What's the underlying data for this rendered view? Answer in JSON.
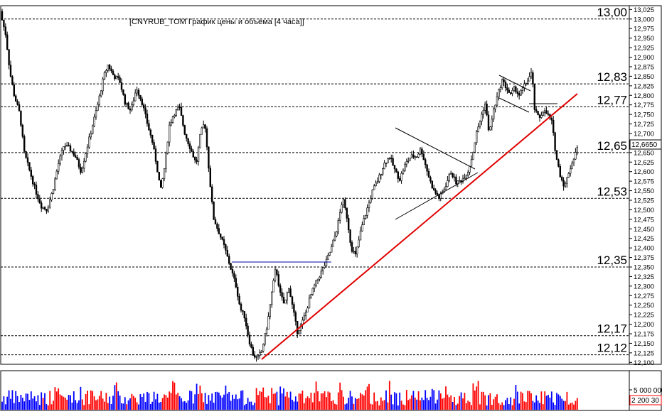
{
  "chart_data": {
    "type": "candlestick",
    "title": "[CNYRUB_TOM График цены и объёма [4 часа]]",
    "ylim": [
      12.095,
      13.035
    ],
    "y_ticks": [
      "13,025",
      "13,000",
      "12,975",
      "12,950",
      "12,925",
      "12,900",
      "12,875",
      "12,850",
      "12,825",
      "12,800",
      "12,775",
      "12,750",
      "12,725",
      "12,700",
      "12,675",
      "12,650",
      "12,625",
      "12,600",
      "12,575",
      "12,550",
      "12,525",
      "12,500",
      "12,475",
      "12,450",
      "12,425",
      "12,400",
      "12,375",
      "12,350",
      "12,325",
      "12,300",
      "12,275",
      "12,250",
      "12,225",
      "12,200",
      "12,175",
      "12,150",
      "12,125",
      "12,100"
    ],
    "levels": [
      {
        "value": 13.0,
        "label": "13,00"
      },
      {
        "value": 12.83,
        "label": "12,83"
      },
      {
        "value": 12.77,
        "label": "12,77"
      },
      {
        "value": 12.65,
        "label": "12,65"
      },
      {
        "value": 12.53,
        "label": "12,53"
      },
      {
        "value": 12.35,
        "label": "12,35"
      },
      {
        "value": 12.17,
        "label": "12,17"
      },
      {
        "value": 12.12,
        "label": "12,12"
      }
    ],
    "last_price": {
      "value": 12.665,
      "label": "12,6650",
      "color": "#ffffff"
    },
    "close_path": [
      [
        0,
        13.02
      ],
      [
        8,
        12.96
      ],
      [
        14,
        12.86
      ],
      [
        20,
        12.8
      ],
      [
        28,
        12.75
      ],
      [
        34,
        12.65
      ],
      [
        42,
        12.6
      ],
      [
        50,
        12.55
      ],
      [
        58,
        12.51
      ],
      [
        66,
        12.5
      ],
      [
        74,
        12.55
      ],
      [
        82,
        12.62
      ],
      [
        90,
        12.67
      ],
      [
        98,
        12.66
      ],
      [
        106,
        12.64
      ],
      [
        114,
        12.6
      ],
      [
        122,
        12.66
      ],
      [
        130,
        12.72
      ],
      [
        138,
        12.78
      ],
      [
        146,
        12.85
      ],
      [
        152,
        12.88
      ],
      [
        160,
        12.85
      ],
      [
        168,
        12.84
      ],
      [
        176,
        12.78
      ],
      [
        184,
        12.76
      ],
      [
        192,
        12.82
      ],
      [
        200,
        12.78
      ],
      [
        208,
        12.72
      ],
      [
        214,
        12.68
      ],
      [
        220,
        12.62
      ],
      [
        226,
        12.55
      ],
      [
        232,
        12.62
      ],
      [
        238,
        12.72
      ],
      [
        244,
        12.75
      ],
      [
        252,
        12.77
      ],
      [
        260,
        12.7
      ],
      [
        268,
        12.66
      ],
      [
        276,
        12.62
      ],
      [
        282,
        12.7
      ],
      [
        288,
        12.73
      ],
      [
        294,
        12.6
      ],
      [
        300,
        12.48
      ],
      [
        308,
        12.44
      ],
      [
        316,
        12.4
      ],
      [
        324,
        12.35
      ],
      [
        332,
        12.3
      ],
      [
        338,
        12.24
      ],
      [
        344,
        12.22
      ],
      [
        350,
        12.16
      ],
      [
        356,
        12.12
      ],
      [
        362,
        12.11
      ],
      [
        368,
        12.13
      ],
      [
        376,
        12.2
      ],
      [
        382,
        12.28
      ],
      [
        388,
        12.35
      ],
      [
        394,
        12.28
      ],
      [
        400,
        12.25
      ],
      [
        406,
        12.3
      ],
      [
        412,
        12.24
      ],
      [
        418,
        12.18
      ],
      [
        424,
        12.2
      ],
      [
        430,
        12.23
      ],
      [
        436,
        12.27
      ],
      [
        442,
        12.3
      ],
      [
        450,
        12.33
      ],
      [
        458,
        12.36
      ],
      [
        466,
        12.4
      ],
      [
        474,
        12.45
      ],
      [
        482,
        12.53
      ],
      [
        488,
        12.48
      ],
      [
        494,
        12.4
      ],
      [
        500,
        12.38
      ],
      [
        508,
        12.45
      ],
      [
        516,
        12.5
      ],
      [
        524,
        12.55
      ],
      [
        532,
        12.58
      ],
      [
        540,
        12.62
      ],
      [
        548,
        12.64
      ],
      [
        556,
        12.6
      ],
      [
        562,
        12.58
      ],
      [
        570,
        12.62
      ],
      [
        578,
        12.64
      ],
      [
        586,
        12.64
      ],
      [
        592,
        12.66
      ],
      [
        598,
        12.62
      ],
      [
        604,
        12.58
      ],
      [
        610,
        12.55
      ],
      [
        618,
        12.53
      ],
      [
        626,
        12.56
      ],
      [
        634,
        12.6
      ],
      [
        642,
        12.57
      ],
      [
        650,
        12.58
      ],
      [
        658,
        12.6
      ],
      [
        664,
        12.64
      ],
      [
        670,
        12.7
      ],
      [
        676,
        12.74
      ],
      [
        682,
        12.78
      ],
      [
        688,
        12.7
      ],
      [
        694,
        12.76
      ],
      [
        700,
        12.8
      ],
      [
        706,
        12.84
      ],
      [
        712,
        12.82
      ],
      [
        718,
        12.8
      ],
      [
        724,
        12.82
      ],
      [
        730,
        12.8
      ],
      [
        736,
        12.82
      ],
      [
        742,
        12.84
      ],
      [
        748,
        12.86
      ],
      [
        752,
        12.76
      ],
      [
        758,
        12.74
      ],
      [
        764,
        12.76
      ],
      [
        770,
        12.75
      ],
      [
        776,
        12.73
      ],
      [
        782,
        12.64
      ],
      [
        788,
        12.59
      ],
      [
        794,
        12.56
      ],
      [
        800,
        12.6
      ],
      [
        806,
        12.63
      ],
      [
        811,
        12.66
      ]
    ],
    "volume_scale": {
      "label": "5 000 000",
      "value_label": "2 200 30"
    },
    "colors": {
      "up_volume": "#ff0000",
      "down_volume": "#0000ff",
      "trendline": "#e00000",
      "candles": "#000000",
      "grid": "#000000"
    }
  }
}
